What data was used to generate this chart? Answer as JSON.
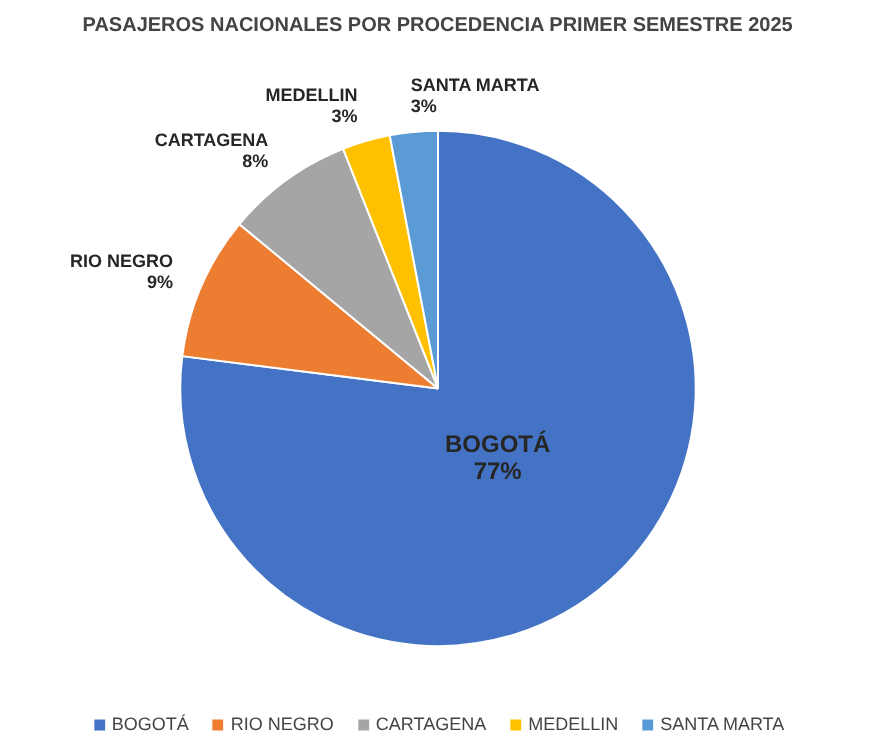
{
  "chart_data": {
    "type": "pie",
    "title": "PASAJEROS NACIONALES POR PROCEDENCIA PRIMER SEMESTRE 2025",
    "categories": [
      "BOGOTÁ",
      "RIO NEGRO",
      "CARTAGENA",
      "MEDELLIN",
      "SANTA MARTA"
    ],
    "values": [
      77,
      9,
      8,
      3,
      3
    ],
    "colors": [
      "#4472c4",
      "#ed7d31",
      "#a5a5a5",
      "#ffc000",
      "#5b9bd5"
    ],
    "value_labels": [
      "77%",
      "9%",
      "8%",
      "3%",
      "3%"
    ],
    "legend": "bottom"
  }
}
